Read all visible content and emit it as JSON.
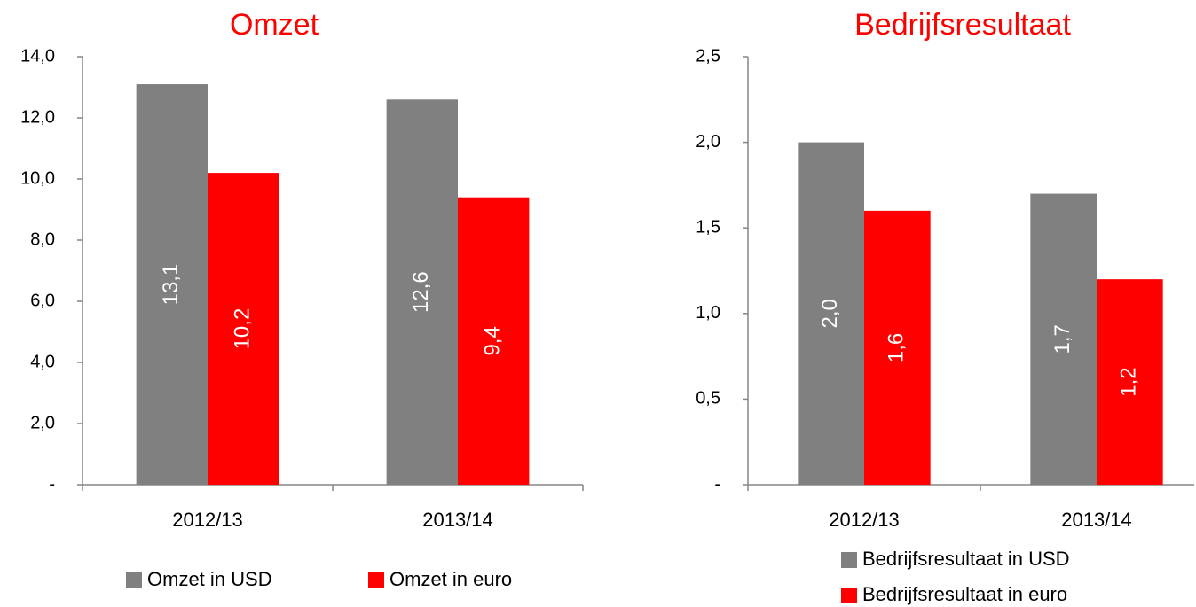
{
  "chart_data": [
    {
      "type": "bar",
      "title": "Omzet",
      "categories": [
        "2012/13",
        "2013/14"
      ],
      "series": [
        {
          "name": "Omzet in USD",
          "color": "#808080",
          "values": [
            13.1,
            12.6
          ],
          "value_labels": [
            "13,1",
            "12,6"
          ]
        },
        {
          "name": "Omzet in euro",
          "color": "#ff0000",
          "values": [
            10.2,
            9.4
          ],
          "value_labels": [
            "10,2",
            "9,4"
          ]
        }
      ],
      "ylim": [
        0,
        14
      ],
      "yticks": [
        {
          "value": 0,
          "label": "-"
        },
        {
          "value": 2,
          "label": "2,0"
        },
        {
          "value": 4,
          "label": "4,0"
        },
        {
          "value": 6,
          "label": "6,0"
        },
        {
          "value": 8,
          "label": "8,0"
        },
        {
          "value": 10,
          "label": "10,0"
        },
        {
          "value": 12,
          "label": "12,0"
        },
        {
          "value": 14,
          "label": "14,0"
        }
      ],
      "grid": false,
      "legend": "bottom"
    },
    {
      "type": "bar",
      "title": "Bedrijfsresultaat",
      "categories": [
        "2012/13",
        "2013/14"
      ],
      "series": [
        {
          "name": "Bedrijfsresultaat in USD",
          "color": "#808080",
          "values": [
            2.0,
            1.7
          ],
          "value_labels": [
            "2,0",
            "1,7"
          ]
        },
        {
          "name": "Bedrijfsresultaat in euro",
          "color": "#ff0000",
          "values": [
            1.6,
            1.2
          ],
          "value_labels": [
            "1,6",
            "1,2"
          ]
        }
      ],
      "ylim": [
        0,
        2.5
      ],
      "yticks": [
        {
          "value": 0,
          "label": "-"
        },
        {
          "value": 0.5,
          "label": "0,5"
        },
        {
          "value": 1,
          "label": "1,0"
        },
        {
          "value": 1.5,
          "label": "1,5"
        },
        {
          "value": 2,
          "label": "2,0"
        },
        {
          "value": 2.5,
          "label": "2,5"
        }
      ],
      "grid": false,
      "legend": "bottom"
    }
  ]
}
